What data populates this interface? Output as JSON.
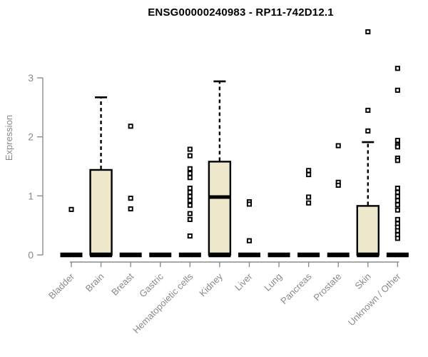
{
  "title": "ENSG00000240983 - RP11-742D12.1",
  "chart_data": {
    "type": "boxplot",
    "title": "ENSG00000240983 - RP11-742D12.1",
    "xlabel": "",
    "ylabel": "Expression",
    "ylim": [
      0,
      3
    ],
    "yticks": [
      0,
      1,
      2,
      3
    ],
    "grid": false,
    "legend": false,
    "categories": [
      "Bladder",
      "Brain",
      "Breast",
      "Gastric",
      "Hematopoietic cells",
      "Kidney",
      "Liver",
      "Lung",
      "Pancreas",
      "Prostate",
      "Skin",
      "Unknown / Other"
    ],
    "boxes": [
      {
        "category": "Bladder",
        "q1": 0,
        "median": 0,
        "q3": 0,
        "whisker_low": 0,
        "whisker_high": 0,
        "outliers": [
          0.77
        ]
      },
      {
        "category": "Brain",
        "q1": 0,
        "median": 0,
        "q3": 1.44,
        "whisker_low": 0,
        "whisker_high": 2.67,
        "outliers": []
      },
      {
        "category": "Breast",
        "q1": 0,
        "median": 0,
        "q3": 0,
        "whisker_low": 0,
        "whisker_high": 0,
        "outliers": [
          2.18,
          0.96,
          0.78
        ]
      },
      {
        "category": "Gastric",
        "q1": 0,
        "median": 0,
        "q3": 0,
        "whisker_low": 0,
        "whisker_high": 0,
        "outliers": []
      },
      {
        "category": "Hematopoietic cells",
        "q1": 0,
        "median": 0,
        "q3": 0,
        "whisker_low": 0,
        "whisker_high": 0,
        "outliers": [
          1.79,
          1.68,
          1.46,
          1.38,
          1.31,
          1.13,
          1.06,
          0.99,
          0.92,
          0.84,
          0.7,
          0.6,
          0.32
        ]
      },
      {
        "category": "Kidney",
        "q1": 0,
        "median": 0.98,
        "q3": 1.58,
        "whisker_low": 0,
        "whisker_high": 2.94,
        "outliers": []
      },
      {
        "category": "Liver",
        "q1": 0,
        "median": 0,
        "q3": 0,
        "whisker_low": 0,
        "whisker_high": 0,
        "outliers": [
          0.9,
          0.86,
          0.24
        ]
      },
      {
        "category": "Lung",
        "q1": 0,
        "median": 0,
        "q3": 0,
        "whisker_low": 0,
        "whisker_high": 0,
        "outliers": []
      },
      {
        "category": "Pancreas",
        "q1": 0,
        "median": 0,
        "q3": 0,
        "whisker_low": 0,
        "whisker_high": 0,
        "outliers": [
          1.43,
          1.36,
          0.98,
          0.88
        ]
      },
      {
        "category": "Prostate",
        "q1": 0,
        "median": 0,
        "q3": 0,
        "whisker_low": 0,
        "whisker_high": 0,
        "outliers": [
          1.85,
          1.23,
          1.18
        ]
      },
      {
        "category": "Skin",
        "q1": 0,
        "median": 0,
        "q3": 0.83,
        "whisker_low": 0,
        "whisker_high": 1.91,
        "outliers": [
          3.78,
          2.45,
          2.1
        ]
      },
      {
        "category": "Unknown / Other",
        "q1": 0,
        "median": 0,
        "q3": 0,
        "whisker_low": 0,
        "whisker_high": 0,
        "outliers": [
          3.16,
          2.79,
          1.94,
          1.86,
          1.83,
          1.64,
          1.6,
          1.13,
          1.06,
          0.99,
          0.92,
          0.85,
          0.76,
          0.6,
          0.53,
          0.47,
          0.41,
          0.34,
          0.28
        ]
      }
    ],
    "colors": {
      "box_fill": "#EDE7CC",
      "box_stroke": "#000000",
      "median": "#000000",
      "outlier_stroke": "#000000",
      "outlier_fill": "#ffffff",
      "axis": "#8c8c8c",
      "axis_text": "#8a8a8a",
      "title_text": "#000000"
    }
  }
}
